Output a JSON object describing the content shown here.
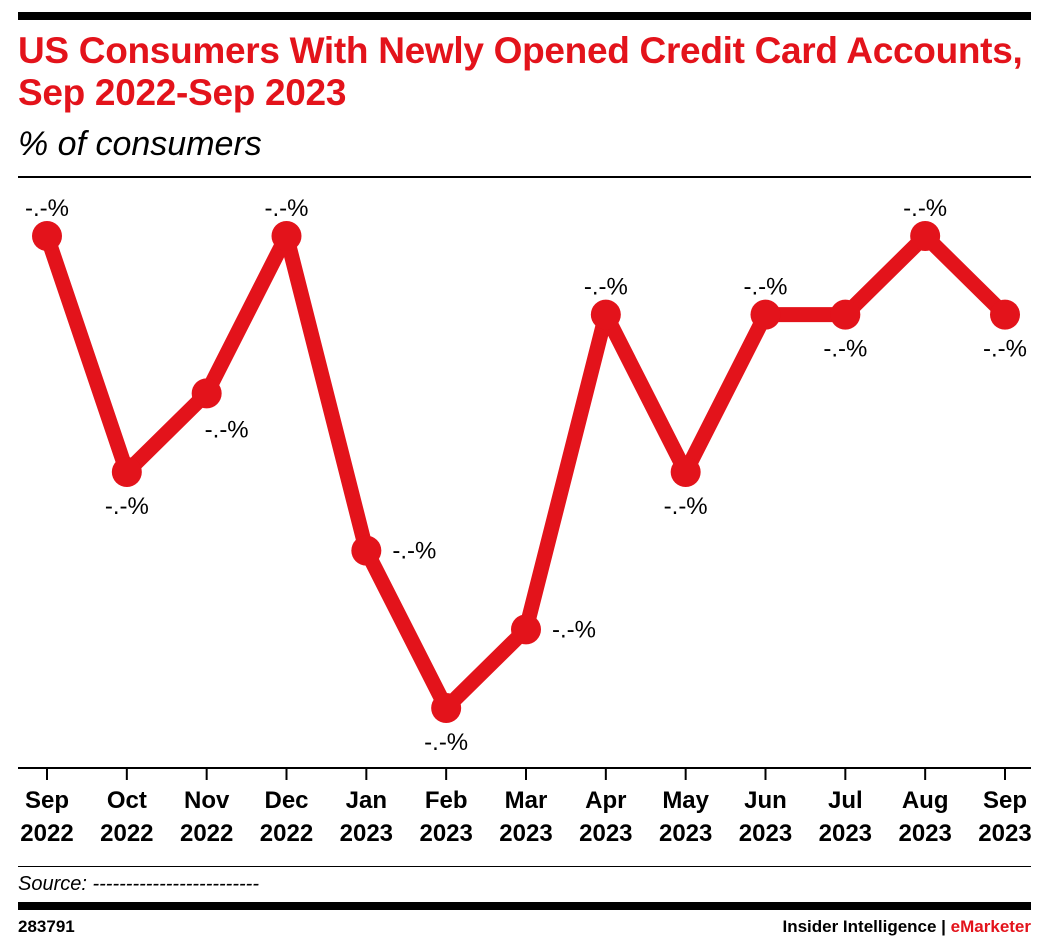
{
  "header": {
    "title": "US Consumers With Newly Opened Credit Card Accounts, Sep 2022-Sep 2023",
    "subtitle": "% of consumers"
  },
  "footer": {
    "source": "Source: -------------------------",
    "chart_id": "283791",
    "brand_main": "Insider Intelligence | ",
    "brand_accent": "eMarketer"
  },
  "colors": {
    "accent": "#e3131b",
    "text": "#000000"
  },
  "chart_data": {
    "type": "line",
    "title": "US Consumers With Newly Opened Credit Card Accounts, Sep 2022-Sep 2023",
    "subtitle": "% of consumers",
    "xlabel": "",
    "ylabel": "",
    "grid": false,
    "categories": [
      [
        "Sep",
        "2022"
      ],
      [
        "Oct",
        "2022"
      ],
      [
        "Nov",
        "2022"
      ],
      [
        "Dec",
        "2022"
      ],
      [
        "Jan",
        "2023"
      ],
      [
        "Feb",
        "2023"
      ],
      [
        "Mar",
        "2023"
      ],
      [
        "Apr",
        "2023"
      ],
      [
        "May",
        "2023"
      ],
      [
        "Jun",
        "2023"
      ],
      [
        "Jul",
        "2023"
      ],
      [
        "Aug",
        "2023"
      ],
      [
        "Sep",
        "2023"
      ]
    ],
    "series": [
      {
        "name": "",
        "color": "#e3131b",
        "values": [
          5.8,
          4.9,
          5.2,
          5.8,
          4.6,
          4.0,
          4.3,
          5.5,
          4.9,
          5.5,
          5.5,
          5.8,
          5.5
        ],
        "labels": [
          "-.-%",
          "-.-%",
          "-.-%",
          "-.-%",
          "-.-%",
          "-.-%",
          "-.-%",
          "-.-%",
          "-.-%",
          "-.-%",
          "-.-%",
          "-.-%",
          "-.-%"
        ],
        "label_positions": [
          "above",
          "below",
          "below-right",
          "above",
          "right",
          "below",
          "right",
          "above",
          "below",
          "above",
          "below",
          "above",
          "below"
        ]
      }
    ],
    "ylim": [
      3.8,
      6.0
    ]
  }
}
